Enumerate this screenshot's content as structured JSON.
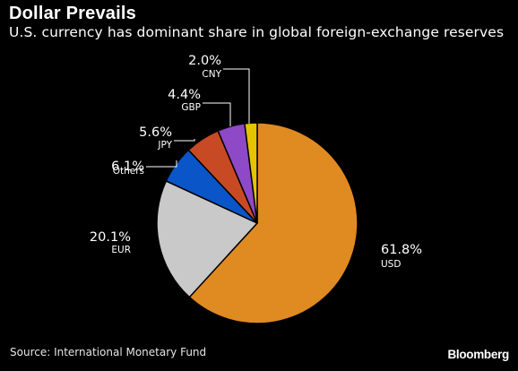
{
  "header": {
    "title": "Dollar Prevails",
    "subtitle": "U.S. currency has dominant share in global foreign-exchange reserves"
  },
  "footer": {
    "source": "Source: International Monetary Fund",
    "brand": "Bloomberg"
  },
  "chart_data": {
    "type": "pie",
    "title": "Dollar Prevails",
    "subtitle": "U.S. currency has dominant share in global foreign-exchange reserves",
    "slices": [
      {
        "label": "USD",
        "value": 61.8,
        "display": "61.8%",
        "color": "#e08a22"
      },
      {
        "label": "EUR",
        "value": 20.1,
        "display": "20.1%",
        "color": "#c9c9c9"
      },
      {
        "label": "Others",
        "value": 6.1,
        "display": "6.1%",
        "color": "#0a55c8"
      },
      {
        "label": "JPY",
        "value": 5.6,
        "display": "5.6%",
        "color": "#c84a24"
      },
      {
        "label": "GBP",
        "value": 4.4,
        "display": "4.4%",
        "color": "#8e49c6"
      },
      {
        "label": "CNY",
        "value": 2.0,
        "display": "2.0%",
        "color": "#e5c300"
      }
    ],
    "legend": "none",
    "grid": false
  }
}
